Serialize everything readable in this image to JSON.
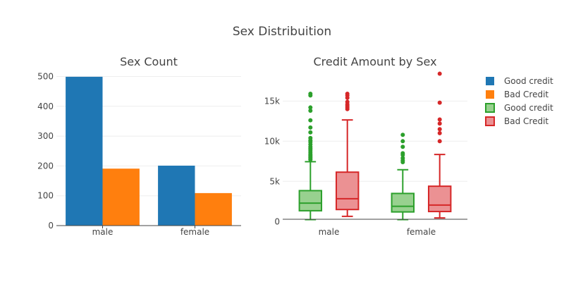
{
  "figure_title": "Sex Distribuition",
  "colors": {
    "good_bar": "#1f77b4",
    "bad_bar": "#ff7f0e",
    "good_box_line": "#2ca02c",
    "good_box_fill": "#98d18f",
    "bad_box_line": "#d62728",
    "bad_box_fill": "#eb9193"
  },
  "legend": [
    {
      "label": "Good credit",
      "kind": "bar",
      "color": "#1f77b4"
    },
    {
      "label": "Bad Credit",
      "kind": "bar",
      "color": "#ff7f0e"
    },
    {
      "label": "Good credit",
      "kind": "box",
      "color": "#2ca02c",
      "fill": "#98d18f"
    },
    {
      "label": "Bad Credit",
      "kind": "box",
      "color": "#d62728",
      "fill": "#eb9193"
    }
  ],
  "chart_data": [
    {
      "type": "bar",
      "title": "Sex Count",
      "categories": [
        "male",
        "female"
      ],
      "series": [
        {
          "name": "Good credit",
          "values": [
            499,
            201
          ],
          "color": "#1f77b4"
        },
        {
          "name": "Bad Credit",
          "values": [
            191,
            109
          ],
          "color": "#ff7f0e"
        }
      ],
      "ylim": [
        0,
        520
      ],
      "yticks": [
        0,
        100,
        200,
        300,
        400,
        500
      ],
      "grid": true
    },
    {
      "type": "box",
      "title": "Credit Amount by Sex",
      "categories": [
        "male",
        "female"
      ],
      "ylim": [
        -500,
        18800
      ],
      "yticks": [
        0,
        5000,
        10000,
        15000
      ],
      "ytick_labels": [
        "0",
        "5k",
        "10k",
        "15k"
      ],
      "grid": true,
      "series": [
        {
          "name": "Good credit",
          "boxes": [
            {
              "category": "male",
              "min": 250,
              "q1": 1350,
              "median": 2300,
              "q3": 3850,
              "max": 7450,
              "outliers": [
                7700,
                7800,
                7950,
                8100,
                8250,
                8400,
                8650,
                8900,
                9100,
                9300,
                9600,
                9900,
                10100,
                10400,
                11100,
                11700,
                12600,
                13800,
                14200,
                15700,
                15900
              ]
            },
            {
              "category": "female",
              "min": 250,
              "q1": 1200,
              "median": 1900,
              "q3": 3500,
              "max": 6450,
              "outliers": [
                7400,
                7600,
                7900,
                8300,
                8500,
                9300,
                10000,
                10800
              ]
            }
          ]
        },
        {
          "name": "Bad Credit",
          "boxes": [
            {
              "category": "male",
              "min": 650,
              "q1": 1500,
              "median": 2850,
              "q3": 6150,
              "max": 12650,
              "outliers": [
                14000,
                14200,
                14400,
                14600,
                14900,
                15400,
                15700,
                15900
              ]
            },
            {
              "category": "female",
              "min": 450,
              "q1": 1250,
              "median": 2050,
              "q3": 4400,
              "max": 8350,
              "outliers": [
                10000,
                11000,
                11500,
                12200,
                12700,
                14800,
                18400
              ]
            }
          ]
        }
      ]
    }
  ]
}
